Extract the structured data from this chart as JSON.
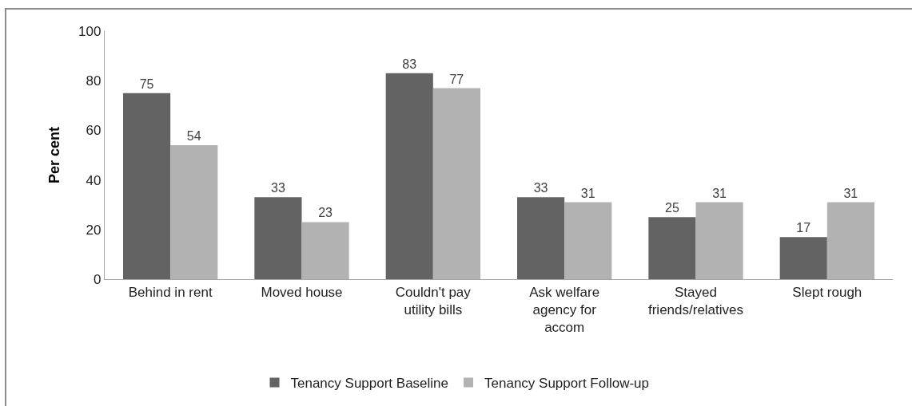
{
  "chart_data": {
    "type": "bar",
    "ylabel": "Per cent",
    "categories": [
      "Behind in rent",
      "Moved house",
      "Couldn't pay utility bills",
      "Ask welfare agency for accom",
      "Stayed friends/relatives",
      "Slept rough"
    ],
    "series": [
      {
        "name": "Tenancy Support Baseline",
        "color": "#636363",
        "values": [
          75,
          33,
          83,
          33,
          25,
          17
        ]
      },
      {
        "name": "Tenancy Support Follow-up",
        "color": "#b2b2b2",
        "values": [
          54,
          23,
          77,
          31,
          31,
          31
        ]
      }
    ],
    "ylim": [
      0,
      100
    ],
    "yticks": [
      0,
      20,
      40,
      60,
      80,
      100
    ],
    "legend": "bottom",
    "data_labels": true
  }
}
